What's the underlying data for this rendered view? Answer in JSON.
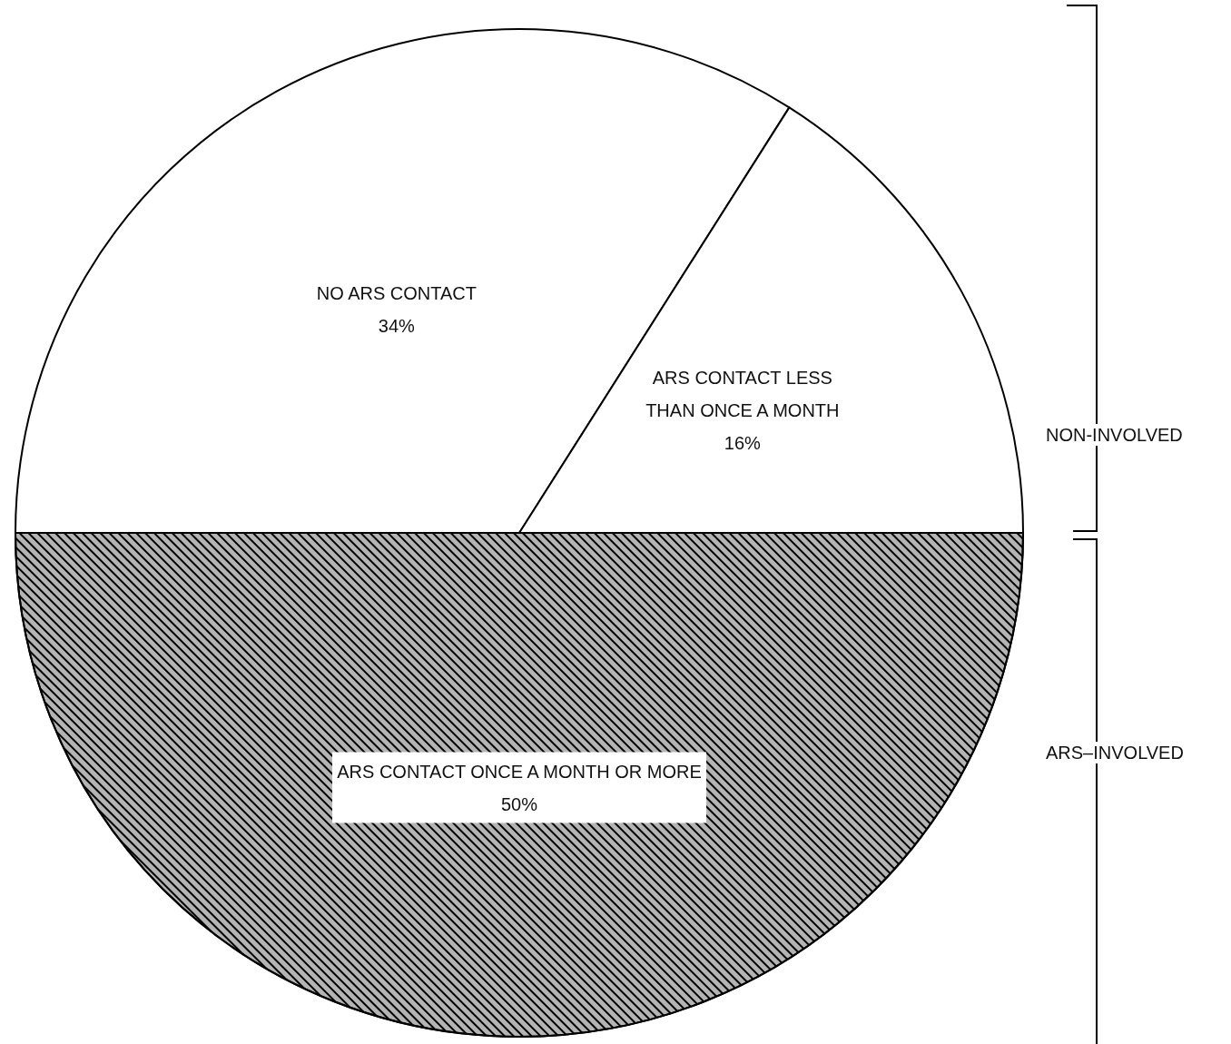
{
  "chart_data": {
    "type": "pie",
    "categories": [
      "NO ARS CONTACT",
      "ARS CONTACT LESS THAN ONCE A MONTH",
      "ARS CONTACT ONCE A MONTH OR MORE"
    ],
    "values": [
      34,
      16,
      50
    ],
    "value_labels": [
      "34%",
      "16%",
      "50%"
    ],
    "colors": [
      "#ffffff",
      "#ffffff",
      "#b4b4b4"
    ],
    "annotations": [
      "NON-INVOLVED",
      "ARS–INVOLVED"
    ],
    "legend": false
  }
}
